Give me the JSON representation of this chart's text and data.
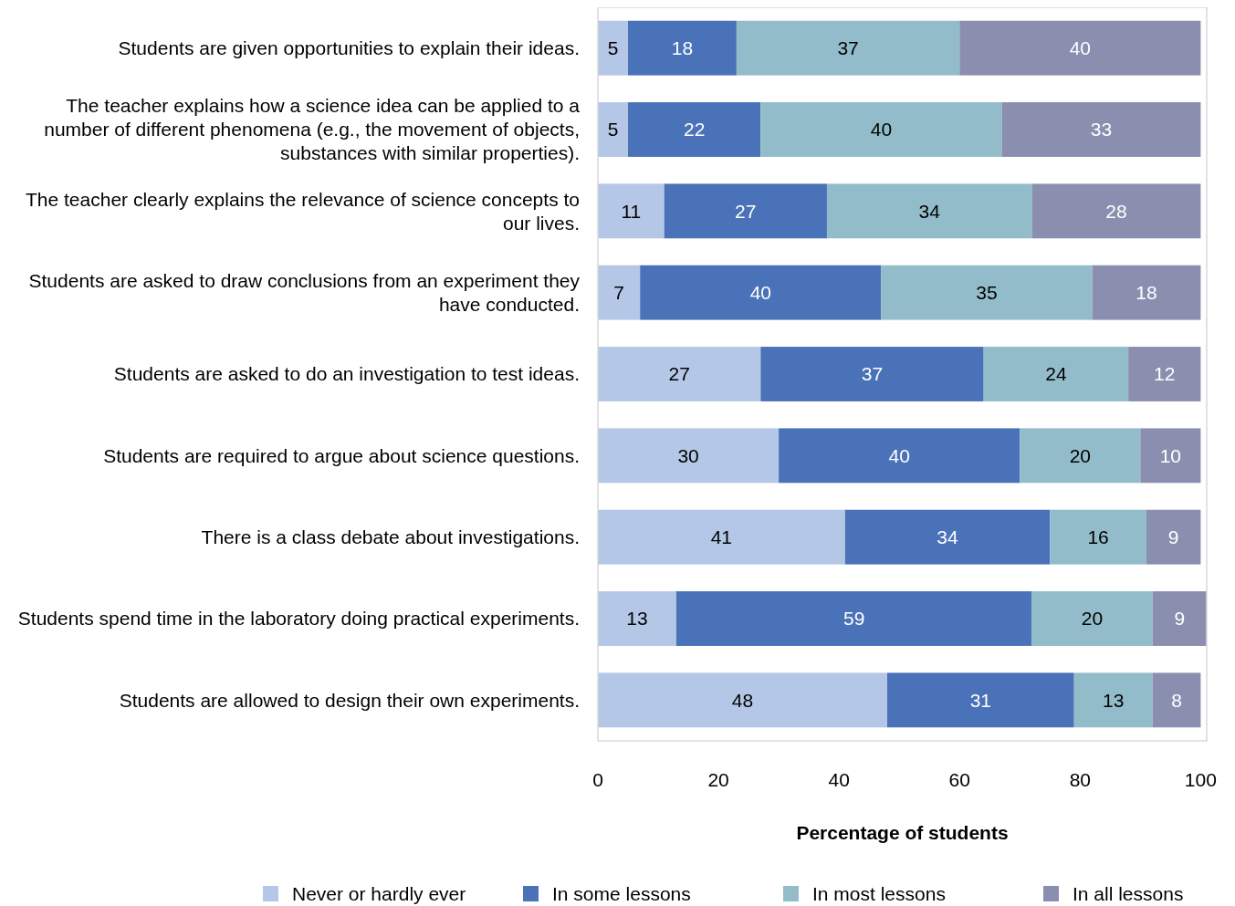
{
  "chart_data": {
    "type": "bar",
    "orientation": "horizontal",
    "stacked": true,
    "data_labels": true,
    "xlabel": "Percentage of students",
    "categories": [
      "Students are given opportunities to explain their ideas.",
      "The teacher explains how a science idea can be applied to a number of different phenomena (e.g., the movement of objects, substances with similar properties).",
      "The teacher clearly explains the relevance of science concepts to our lives.",
      "Students are asked to draw conclusions from an experiment they have conducted.",
      "Students are asked to do an investigation to test ideas.",
      "Students are required to argue about science questions.",
      "There is a class debate about investigations.",
      "Students spend time in the laboratory doing practical experiments.",
      "Students are allowed to design their own experiments."
    ],
    "series": [
      {
        "name": "Never or hardly ever",
        "color": "#b4c7e7",
        "values": [
          5,
          5,
          11,
          7,
          27,
          30,
          41,
          13,
          48
        ]
      },
      {
        "name": "In some lessons",
        "color": "#4a72b8",
        "values": [
          18,
          22,
          27,
          40,
          37,
          40,
          34,
          59,
          31
        ]
      },
      {
        "name": "In most lessons",
        "color": "#93bccb",
        "values": [
          37,
          40,
          34,
          35,
          24,
          20,
          16,
          20,
          13
        ]
      },
      {
        "name": "In all lessons",
        "color": "#8a8fb0",
        "values": [
          40,
          33,
          28,
          18,
          12,
          10,
          9,
          9,
          8
        ]
      }
    ],
    "xlim": [
      0,
      101
    ],
    "xticks": [
      0,
      20,
      40,
      60,
      80,
      100
    ],
    "grid": false,
    "legend": "bottom"
  }
}
